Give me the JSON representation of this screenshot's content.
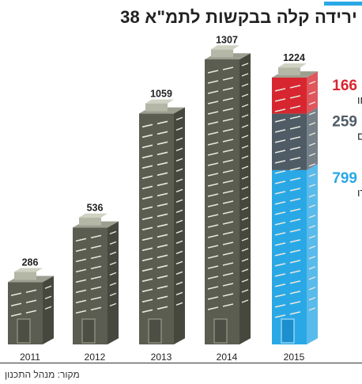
{
  "title": "ירידה קלה בבקשות לתמ\"א 38",
  "source": "מקור: מנהל התכנון",
  "colors": {
    "accent": "#2aa8e6",
    "building_front": "#5b5d50",
    "building_side": "#46483e",
    "building_roof": "#9c9e8f",
    "rejected": "#d7262f",
    "hearings": "#4f5c66",
    "approved": "#2aa8e6"
  },
  "chart_data": {
    "type": "bar",
    "title": "ירידה קלה בבקשות לתמ\"א 38",
    "categories": [
      "2011",
      "2012",
      "2013",
      "2014",
      "2015"
    ],
    "values": [
      286,
      536,
      1059,
      1307,
      1224
    ],
    "ylim": [
      0,
      1307
    ],
    "breakdown_2015": [
      {
        "name": "נדחו",
        "value": 166,
        "color": "#d7262f"
      },
      {
        "name": "בדיונים",
        "value": 259,
        "color": "#4f5c66"
      },
      {
        "name": "אושרו",
        "value": 799,
        "color": "#2aa8e6"
      }
    ]
  }
}
